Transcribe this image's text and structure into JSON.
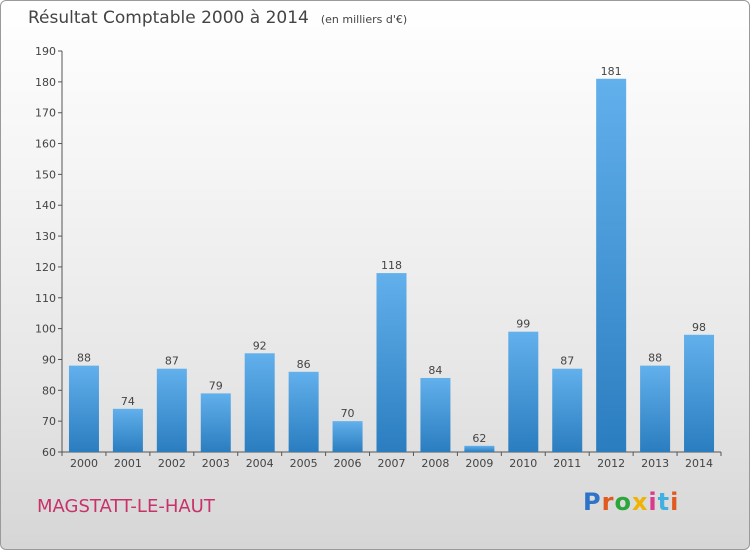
{
  "header": {
    "title": "Résultat Comptable 2000 à 2014",
    "unit": "(en milliers d'€)"
  },
  "footer": {
    "commune": "MAGSTATT-LE-HAUT",
    "brand": "Proxiti"
  },
  "colors": {
    "bar_light": "#62b0ec",
    "bar_dark": "#2a7dbf",
    "commune": "#c8326a",
    "brand_letters": [
      "#2d74c8",
      "#e05a1f",
      "#2aa63a",
      "#f0b400",
      "#d93a8c",
      "#3fb0e0",
      "#e05a1f"
    ]
  },
  "chart_data": {
    "type": "bar",
    "title": "Résultat Comptable 2000 à 2014",
    "subtitle": "(en milliers d'€)",
    "categories": [
      "2000",
      "2001",
      "2002",
      "2003",
      "2004",
      "2005",
      "2006",
      "2007",
      "2008",
      "2009",
      "2010",
      "2011",
      "2012",
      "2013",
      "2014"
    ],
    "values": [
      88,
      74,
      87,
      79,
      92,
      86,
      70,
      118,
      84,
      62,
      99,
      87,
      181,
      88,
      98
    ],
    "ylim": [
      60,
      190
    ],
    "yticks": [
      60,
      70,
      80,
      90,
      100,
      110,
      120,
      130,
      140,
      150,
      160,
      170,
      180,
      190
    ],
    "xlabel": "",
    "ylabel": "",
    "grid": false,
    "data_labels": true
  }
}
